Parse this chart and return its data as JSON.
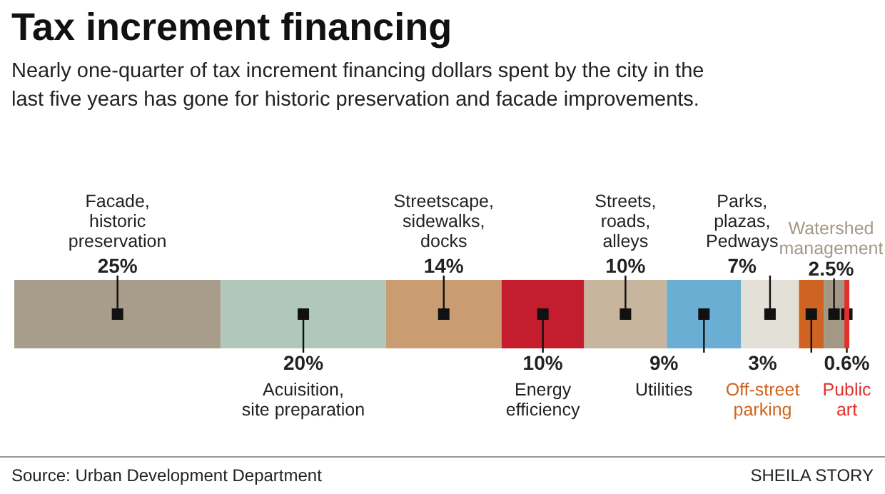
{
  "chart_data": {
    "type": "bar",
    "stacked": true,
    "orientation": "horizontal",
    "title": "Tax increment financing",
    "subtitle": "Nearly one-quarter of tax increment financing dollars spent by the city in the last five years has gone for historic preservation and facade improvements.",
    "categories": [
      null
    ],
    "series": [
      {
        "name": "Facade,\nhistoric\npreservation",
        "color": "#a89c8a",
        "values": [
          25
        ],
        "value_labels": [
          "25%"
        ]
      },
      {
        "name": "Acuisition,\nsite preparation",
        "color": "#b1c7bc",
        "values": [
          20
        ],
        "value_labels": [
          "20%"
        ]
      },
      {
        "name": "Streetscape,\nsidewalks,\ndocks",
        "color": "#c99c72",
        "values": [
          14
        ],
        "value_labels": [
          "14%"
        ]
      },
      {
        "name": "Energy\nefficiency",
        "color": "#c41e2e",
        "values": [
          10
        ],
        "value_labels": [
          "10%"
        ]
      },
      {
        "name": "Streets,\nroads,\nalleys",
        "color": "#c8b59e",
        "values": [
          10
        ],
        "value_labels": [
          "10%"
        ]
      },
      {
        "name": "Utilities",
        "color": "#6aaed3",
        "values": [
          9
        ],
        "value_labels": [
          "9%"
        ]
      },
      {
        "name": "Parks,\nplazas,\nPedways",
        "color": "#e3e0d7",
        "values": [
          7
        ],
        "value_labels": [
          "7%"
        ]
      },
      {
        "name": "Off-street\nparking",
        "color": "#cf6422",
        "values": [
          3
        ],
        "value_labels": [
          "3%"
        ]
      },
      {
        "name": "Watershed\nmanagement",
        "color": "#a39886",
        "values": [
          2.5
        ],
        "value_labels": [
          "2.5%"
        ]
      },
      {
        "name": "Public\nart",
        "color": "#e0302b",
        "values": [
          0.6
        ],
        "value_labels": [
          "0.6%"
        ]
      }
    ],
    "annotations": [
      "Source: Urban Development Department",
      "SHEILA STORY"
    ]
  }
}
